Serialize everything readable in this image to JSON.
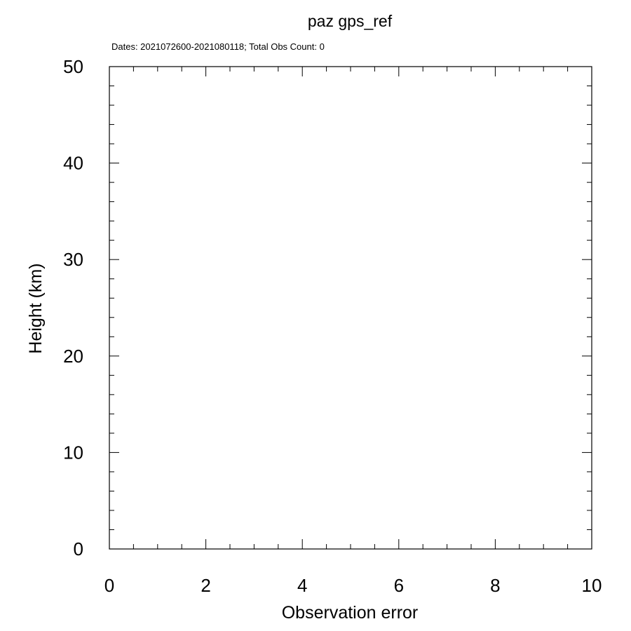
{
  "chart_data": {
    "type": "line",
    "title": "paz gps_ref",
    "subtitle": "Dates: 2021072600-2021080118; Total Obs Count: 0",
    "xlabel": "Observation error",
    "ylabel": "Height (km)",
    "xlim": [
      0,
      10
    ],
    "ylim": [
      0,
      50
    ],
    "x_major_ticks": [
      0,
      2,
      4,
      6,
      8,
      10
    ],
    "x_tick_labels": [
      "0",
      "2",
      "4",
      "6",
      "8",
      "10"
    ],
    "x_minor_step": 0.5,
    "y_major_ticks": [
      0,
      10,
      20,
      30,
      40,
      50
    ],
    "y_tick_labels": [
      "0",
      "10",
      "20",
      "30",
      "40",
      "50"
    ],
    "y_minor_step": 2,
    "grid": false,
    "legend": "none",
    "series": [],
    "colors": {
      "axis": "#000000",
      "background": "#ffffff"
    }
  }
}
